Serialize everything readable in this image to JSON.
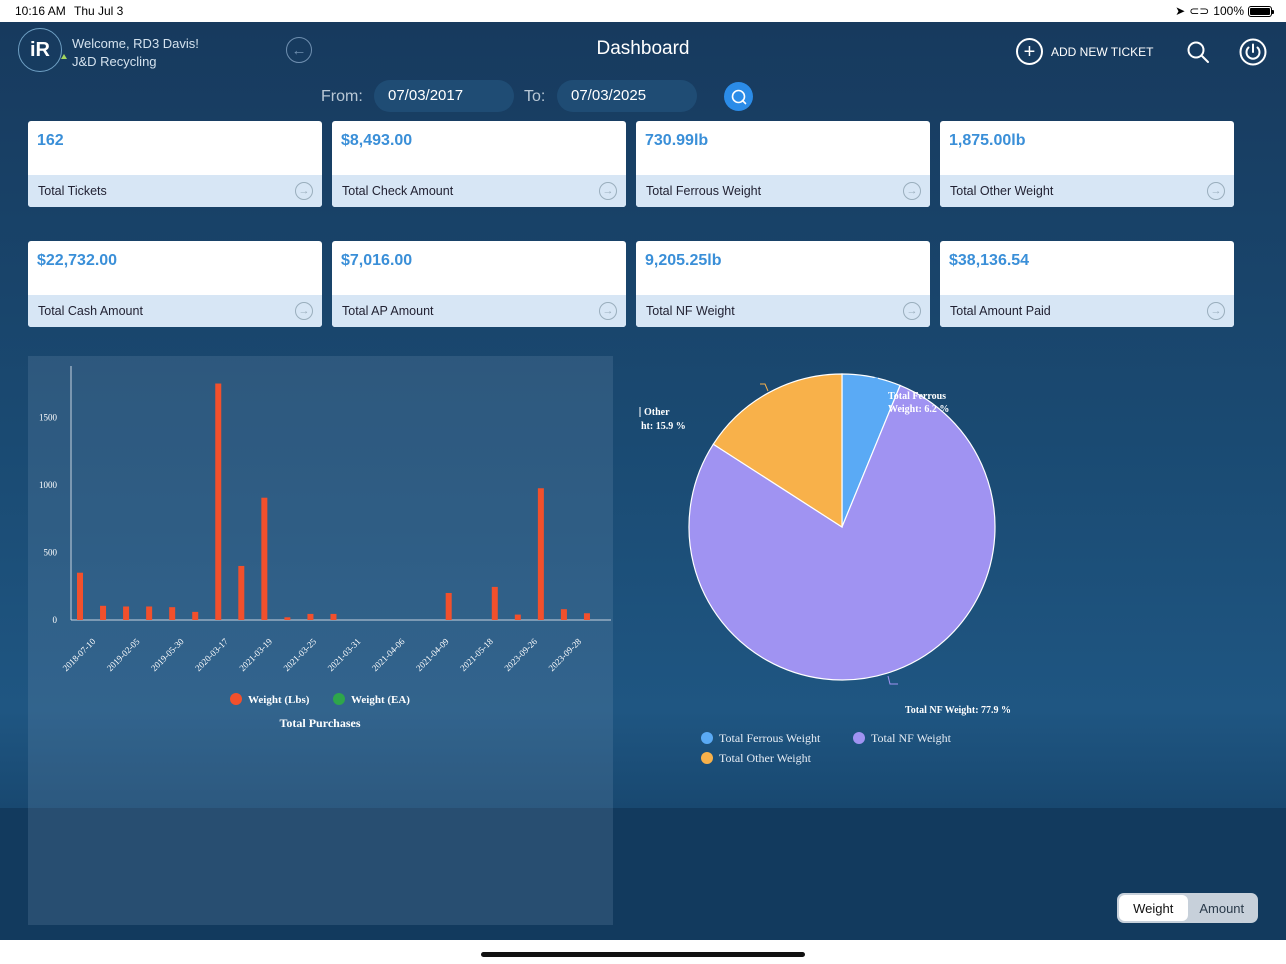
{
  "status": {
    "time": "10:16 AM",
    "date": "Thu Jul 3",
    "battery": "100%"
  },
  "header": {
    "welcome_line1": "Welcome, RD3 Davis!",
    "welcome_line2": "J&D Recycling",
    "title": "Dashboard",
    "add_ticket_label": "ADD NEW TICKET"
  },
  "filter": {
    "from_label": "From:",
    "from_value": "07/03/2017",
    "to_label": "To:",
    "to_value": "07/03/2025"
  },
  "cards": [
    {
      "value": "162",
      "label": "Total Tickets"
    },
    {
      "value": "$8,493.00",
      "label": "Total Check Amount"
    },
    {
      "value": "730.99lb",
      "label": "Total Ferrous Weight"
    },
    {
      "value": "1,875.00lb",
      "label": "Total Other Weight"
    },
    {
      "value": "$22,732.00",
      "label": "Total Cash Amount"
    },
    {
      "value": "$7,016.00",
      "label": "Total AP Amount"
    },
    {
      "value": "9,205.25lb",
      "label": "Total NF Weight"
    },
    {
      "value": "$38,136.54",
      "label": "Total Amount Paid"
    }
  ],
  "toggle": {
    "weight": "Weight",
    "amount": "Amount",
    "selected": "Weight"
  },
  "colors": {
    "bar": "#f2502c",
    "ferrous": "#5aaaf5",
    "nf": "#a093f2",
    "other": "#f8b14a",
    "accent": "#3a8fd8"
  },
  "chart_data": [
    {
      "type": "bar",
      "title": "Total Purchases",
      "x_tick_labels": [
        "2018-07-10",
        "2019-02-05",
        "2019-05-30",
        "2020-03-17",
        "2021-03-19",
        "2021-03-25",
        "2021-03-31",
        "2021-04-06",
        "2021-04-09",
        "2021-05-18",
        "2023-09-26",
        "2023-09-28"
      ],
      "y_ticks": [
        0,
        500,
        1000,
        1500
      ],
      "ylim": [
        0,
        1850
      ],
      "series": [
        {
          "name": "Weight (Lbs)",
          "color": "#f2502c",
          "values": [
            350,
            105,
            100,
            100,
            95,
            60,
            1750,
            400,
            905,
            20,
            45,
            45,
            0,
            0,
            0,
            0,
            200,
            0,
            245,
            40,
            975,
            80,
            50
          ]
        },
        {
          "name": "Weight (EA)",
          "color": "#2ea64a",
          "values": []
        }
      ]
    },
    {
      "type": "pie",
      "slices": [
        {
          "label": "Total Ferrous Weight",
          "value": 6.2,
          "color": "#5aaaf5",
          "callout": "Total Ferrous Weight: 6.2 %"
        },
        {
          "label": "Total NF Weight",
          "value": 77.9,
          "color": "#a093f2",
          "callout": "Total NF Weight: 77.9 %"
        },
        {
          "label": "Total Other Weight",
          "value": 15.9,
          "color": "#f8b14a",
          "callout_line1": "Other",
          "callout_line2": "ht: 15.9 %"
        }
      ],
      "callout_ferrous_line1": "Total Ferrous",
      "callout_ferrous_line2": "Weight: 6.2 %",
      "callout_nf": "Total NF Weight: 77.9 %",
      "legend": [
        "Total Ferrous Weight",
        "Total NF Weight",
        "Total Other Weight"
      ]
    }
  ]
}
